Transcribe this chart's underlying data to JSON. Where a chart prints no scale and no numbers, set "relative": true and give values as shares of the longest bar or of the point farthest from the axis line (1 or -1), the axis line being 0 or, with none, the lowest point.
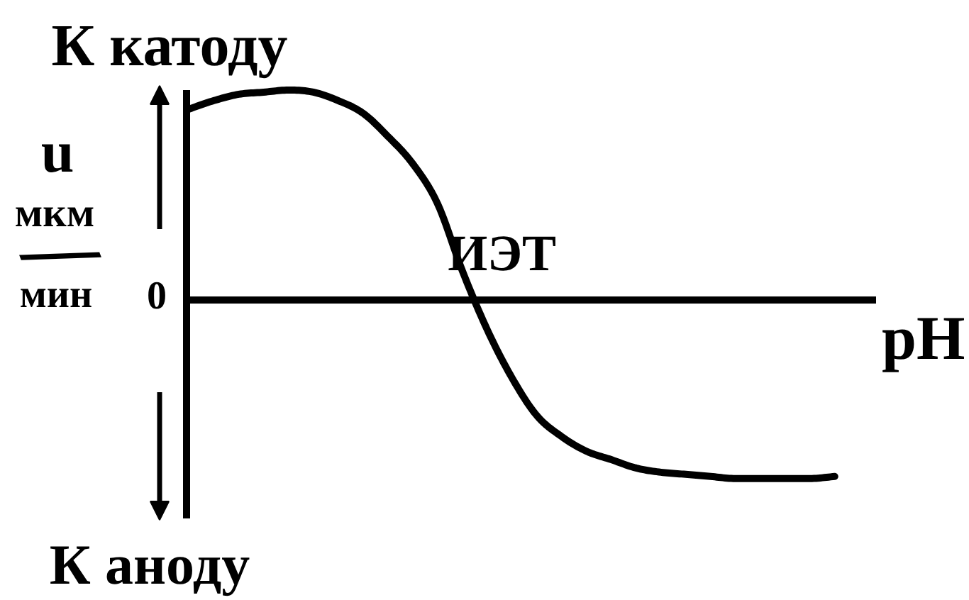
{
  "chart_data": {
    "type": "line",
    "relative": true,
    "categories": [
      null,
      null,
      null,
      null,
      null,
      null,
      null,
      null,
      null,
      null,
      null,
      null,
      null,
      null,
      null,
      null,
      null,
      null,
      null,
      null,
      null,
      null,
      null,
      null,
      null,
      null,
      null
    ],
    "series": [
      {
        "color": "#000000",
        "values": [
          0.91,
          0.95,
          0.98,
          0.99,
          1.0,
          0.99,
          0.95,
          0.89,
          0.78,
          0.65,
          0.46,
          0.14,
          -0.14,
          -0.37,
          -0.55,
          -0.65,
          -0.72,
          -0.76,
          -0.8,
          -0.82,
          -0.83,
          -0.84,
          -0.85,
          -0.85,
          -0.85,
          -0.85,
          -0.84
        ]
      }
    ],
    "xlabel": "pH",
    "ylabel": "u мкм/мин",
    "annotations": [
      "К катоду",
      "К аноду",
      "0",
      "ИЭТ"
    ],
    "line_style": "solid"
  }
}
